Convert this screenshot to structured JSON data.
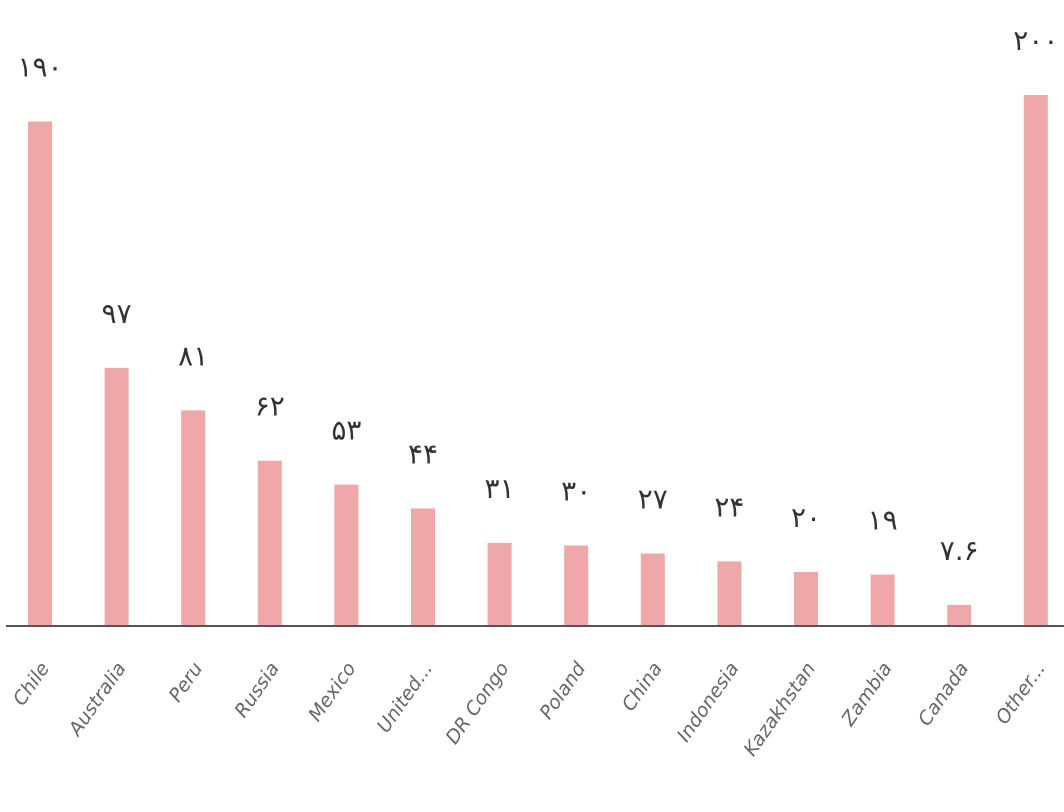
{
  "chart_data": {
    "type": "bar",
    "title": "",
    "xlabel": "",
    "ylabel": "",
    "ylim": [
      0,
      210
    ],
    "grid": false,
    "legend": "none",
    "categories": [
      "Chile",
      "Australia",
      "Peru",
      "Russia",
      "Mexico",
      "United...",
      "DR Congo",
      "Poland",
      "China",
      "Indonesia",
      "Kazakhstan",
      "Zambia",
      "Canada",
      "Other..."
    ],
    "values": [
      190,
      97,
      81,
      62,
      53,
      44,
      31,
      30,
      27,
      24,
      20,
      19,
      7.6,
      200
    ],
    "value_labels": [
      "۱۹۰",
      "۹۷",
      "۸۱",
      "۶۲",
      "۵۳",
      "۴۴",
      "۳۱",
      "۳۰",
      "۲۷",
      "۲۴",
      "۲۰",
      "۱۹",
      "۷.۶",
      "۲۰۰"
    ],
    "bar_color": "#f0a7a9",
    "axis_color": "#555555"
  }
}
